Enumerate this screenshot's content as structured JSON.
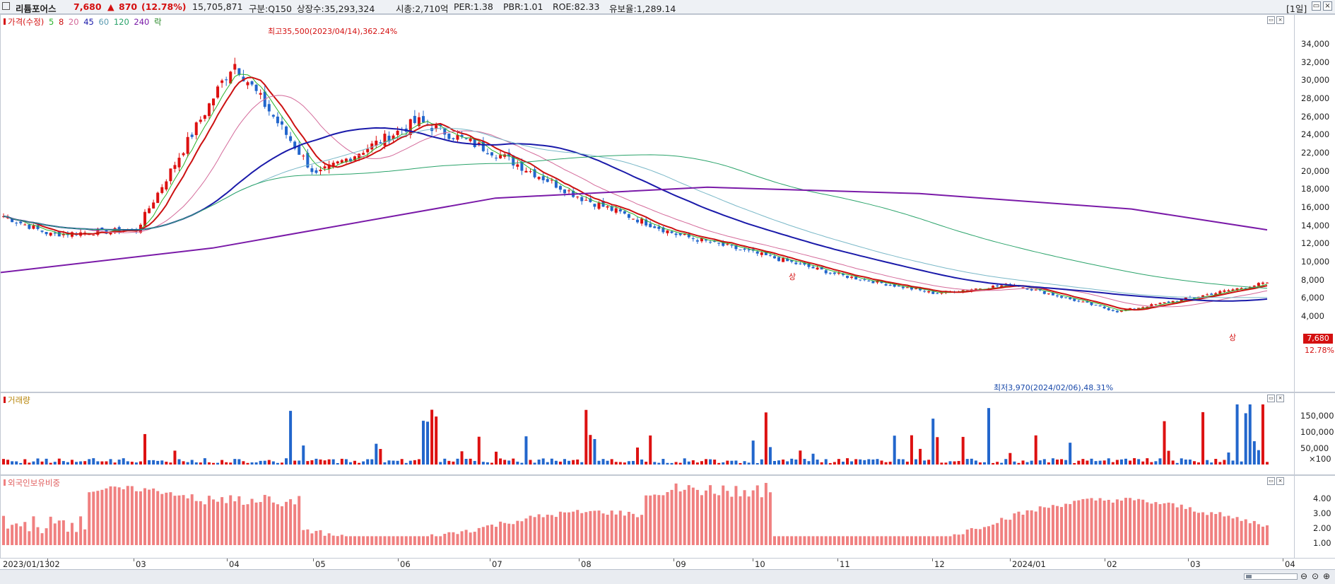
{
  "header": {
    "stock_name": "리튬포어스",
    "price": "7,680",
    "change_arrow": "▲",
    "change": "870",
    "change_pct": "(12.78%)",
    "volume": "15,705,871",
    "segment": "구분:Q150",
    "listed_shares": "상장수:35,293,324",
    "market_cap": "시총:2,710억",
    "per": "PER:1.38",
    "pbr": "PBR:1.01",
    "roe": "ROE:82.33",
    "float_ratio": "유보율:1,289.14",
    "period_button": "[1일]",
    "restore_icon": "restore-icon",
    "close_icon": "close-icon"
  },
  "legend": {
    "price_label": "가격(수정)",
    "ma": [
      "5",
      "8",
      "20",
      "45",
      "60",
      "120",
      "240"
    ],
    "ma_colors": [
      "#2bb32b",
      "#cc1111",
      "#d46a9a",
      "#1a1aaa",
      "#7ab8c8",
      "#2aa36a",
      "#7a1aa8"
    ],
    "last_label": "락"
  },
  "annotations": {
    "high": "최고35,500(2023/04/14),362.24%",
    "low": "최저3,970(2024/02/06),48.31%",
    "sang": "상"
  },
  "price_axis": {
    "ticks": [
      "34,000",
      "32,000",
      "30,000",
      "28,000",
      "26,000",
      "24,000",
      "22,000",
      "20,000",
      "18,000",
      "16,000",
      "14,000",
      "12,000",
      "10,000",
      "8,000",
      "6,000",
      "4,000"
    ],
    "last_price": "7,680",
    "last_pct": "12.78%"
  },
  "volume_panel": {
    "title": "거래량",
    "ticks": [
      "150,000",
      "100,000",
      "50,000",
      "×100"
    ]
  },
  "foreign_panel": {
    "title": "외국인보유비중",
    "ticks": [
      "4.00",
      "3.00",
      "2.00",
      "1.00"
    ]
  },
  "x_axis": {
    "labels": [
      "2023/01/13",
      "02",
      "03",
      "04",
      "05",
      "06",
      "07",
      "08",
      "09",
      "10",
      "11",
      "12",
      "2024/01",
      "02",
      "03",
      "04"
    ]
  },
  "colors": {
    "up": "#dd1111",
    "down": "#2266cc",
    "foreign_bar": "#f08080"
  },
  "chart_data": {
    "type": "candlestick",
    "ylim": [
      3500,
      36500
    ],
    "key_points": [
      {
        "date": "2023/01/13",
        "close": 15000
      },
      {
        "date": "2023/02",
        "close": 13000
      },
      {
        "date": "2023/03",
        "close": 13500
      },
      {
        "date": "2023/04/14",
        "high": 35500,
        "close": 32000
      },
      {
        "date": "2023/05",
        "close": 19500
      },
      {
        "date": "2023/06",
        "close": 25500
      },
      {
        "date": "2023/07",
        "close": 22000
      },
      {
        "date": "2023/08",
        "close": 17000
      },
      {
        "date": "2023/09",
        "close": 13000
      },
      {
        "date": "2023/10",
        "close": 10500
      },
      {
        "date": "2023/11",
        "close": 8500
      },
      {
        "date": "2023/12",
        "close": 6500
      },
      {
        "date": "2024/01",
        "close": 7500
      },
      {
        "date": "2024/02/06",
        "low": 3970,
        "close": 4500
      },
      {
        "date": "2024/03",
        "close": 6000
      },
      {
        "date": "2024/04",
        "close": 7680
      }
    ]
  }
}
